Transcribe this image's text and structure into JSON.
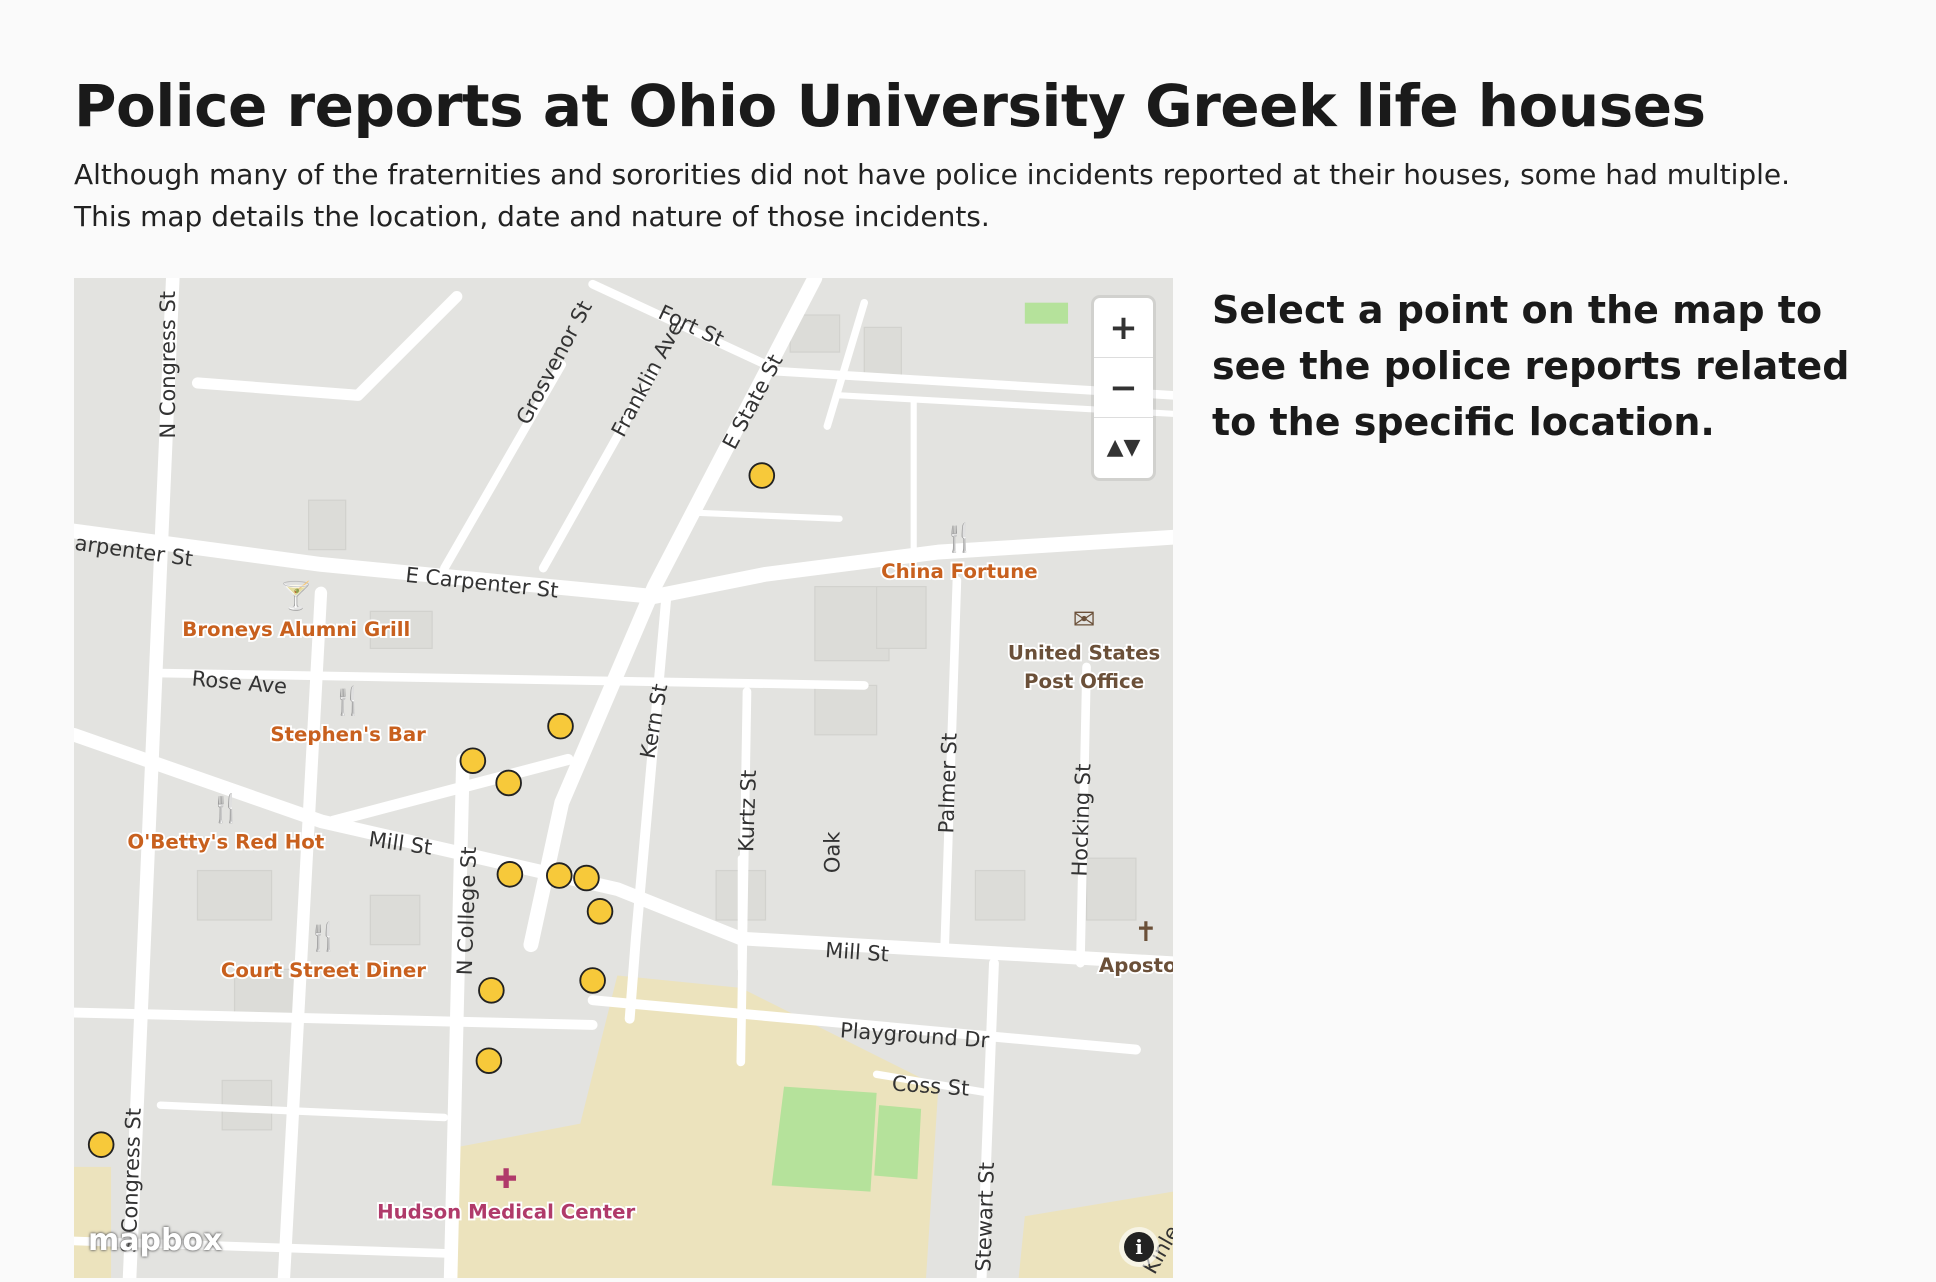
{
  "header": {
    "title": "Police reports at Ohio University Greek life houses",
    "subtitle": "Although many of the fraternities and sororities did not have police incidents reported at their houses, some had multiple. This map details the location, date and nature of those incidents."
  },
  "sidebar": {
    "prompt": "Select a point on the map to see the police reports related to the specific location."
  },
  "map": {
    "controls": {
      "zoom_in": "+",
      "zoom_out": "−",
      "compass": "▲▼"
    },
    "attribution_logo": "mapbox",
    "info_label": "i",
    "marker_color": "#f7c93a",
    "poi_color": "#c8601e",
    "marker_count": 12,
    "streets": [
      "N Congress St",
      "Fort St",
      "Grosvenor St",
      "Franklin Ave",
      "E State St",
      "arpenter St",
      "E Carpenter St",
      "Rose Ave",
      "Mill St",
      "Kern St",
      "Kurtz St",
      "Oak",
      "Palmer St",
      "Hocking St",
      "N College St",
      "Mill St",
      "Playground Dr",
      "Coss St",
      "S Congress St",
      "Stewart St",
      "Kinle"
    ],
    "pois": [
      {
        "name": "Broneys Alumni Grill",
        "icon": "cocktail-icon"
      },
      {
        "name": "China Fortune",
        "icon": "restaurant-icon"
      },
      {
        "name": "Stephen's Bar",
        "icon": "restaurant-icon"
      },
      {
        "name": "O'Betty's Red Hot",
        "icon": "restaurant-icon"
      },
      {
        "name": "Court Street Diner",
        "icon": "restaurant-icon"
      },
      {
        "name": "United States",
        "icon": "post-office-icon"
      },
      {
        "name": "Post Office",
        "icon": ""
      },
      {
        "name": "Apostolic C",
        "icon": "church-icon"
      },
      {
        "name": "Hudson Medical Center",
        "icon": "hospital-icon"
      }
    ]
  }
}
